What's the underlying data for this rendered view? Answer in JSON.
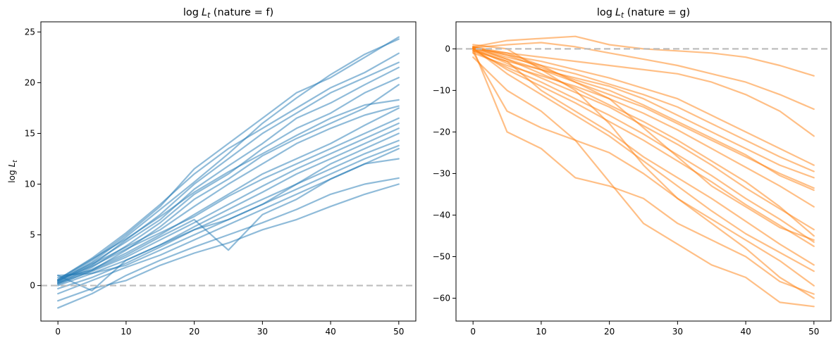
{
  "chart_data": [
    {
      "type": "line",
      "title": "log L_t (nature = f)",
      "title_parts": {
        "prefix": "log",
        "var": "L",
        "sub": "t",
        "suffix": " (nature = f)"
      },
      "ylabel_parts": {
        "prefix": "log",
        "var": "L",
        "sub": "t"
      },
      "xlabel": "",
      "xlim": [
        -2.5,
        52.5
      ],
      "ylim": [
        -3.5,
        26
      ],
      "xticks": [
        0,
        10,
        20,
        30,
        40,
        50
      ],
      "yticks": [
        0,
        5,
        10,
        15,
        20,
        25
      ],
      "color": "#1f77b4",
      "reference_line": {
        "y": 0,
        "color": "#bdbdbd",
        "style": "dashed"
      },
      "grid": false,
      "x": [
        0,
        5,
        10,
        15,
        20,
        25,
        30,
        35,
        40,
        45,
        50
      ],
      "series": [
        {
          "values": [
            0.5,
            2.5,
            5.0,
            7.8,
            11.5,
            14.0,
            16.5,
            19.0,
            20.5,
            22.5,
            24.5
          ]
        },
        {
          "values": [
            0.4,
            2.3,
            4.8,
            7.5,
            10.2,
            13.0,
            16.0,
            18.5,
            20.8,
            22.8,
            24.3
          ]
        },
        {
          "values": [
            0.6,
            2.7,
            5.2,
            8.0,
            11.0,
            13.5,
            15.5,
            17.5,
            19.5,
            21.0,
            22.9
          ]
        },
        {
          "values": [
            0.3,
            2.0,
            4.5,
            7.0,
            10.0,
            12.5,
            15.0,
            17.0,
            19.0,
            20.5,
            22.0
          ]
        },
        {
          "values": [
            0.5,
            2.2,
            4.3,
            6.5,
            9.5,
            11.8,
            14.0,
            16.5,
            18.0,
            19.8,
            21.5
          ]
        },
        {
          "values": [
            0.2,
            1.8,
            3.9,
            6.2,
            9.0,
            11.0,
            13.5,
            15.5,
            17.0,
            19.0,
            20.5
          ]
        },
        {
          "values": [
            0.1,
            1.5,
            3.5,
            5.8,
            8.5,
            10.5,
            12.8,
            14.5,
            16.0,
            17.5,
            19.8
          ]
        },
        {
          "values": [
            0.6,
            2.6,
            4.6,
            6.8,
            9.2,
            11.2,
            13.0,
            14.8,
            16.5,
            17.8,
            18.3
          ]
        },
        {
          "values": [
            0.4,
            2.1,
            3.8,
            5.5,
            7.8,
            10.0,
            12.0,
            14.0,
            15.5,
            16.8,
            17.7
          ]
        },
        {
          "values": [
            0.3,
            1.6,
            3.2,
            5.0,
            7.0,
            9.0,
            11.0,
            12.5,
            14.0,
            15.8,
            17.5
          ]
        },
        {
          "values": [
            0.5,
            1.9,
            3.6,
            5.2,
            6.8,
            8.8,
            10.5,
            12.0,
            13.5,
            15.0,
            16.5
          ]
        },
        {
          "values": [
            0.2,
            1.4,
            2.8,
            4.5,
            6.2,
            8.0,
            9.8,
            11.5,
            13.0,
            14.5,
            16.0
          ]
        },
        {
          "values": [
            0.0,
            1.2,
            2.5,
            4.0,
            5.8,
            7.5,
            9.2,
            11.0,
            12.5,
            14.0,
            15.5
          ]
        },
        {
          "values": [
            -0.3,
            0.8,
            2.2,
            3.8,
            5.5,
            7.0,
            8.5,
            10.0,
            11.5,
            13.0,
            14.3
          ]
        },
        {
          "values": [
            1.0,
            1.2,
            2.0,
            3.5,
            5.0,
            6.5,
            8.0,
            9.5,
            11.0,
            12.5,
            13.8
          ]
        },
        {
          "values": [
            -0.8,
            0.5,
            1.8,
            3.0,
            4.5,
            6.0,
            7.5,
            9.0,
            10.5,
            12.0,
            12.5
          ]
        },
        {
          "values": [
            -2.2,
            -0.8,
            1.0,
            2.5,
            3.8,
            5.0,
            6.2,
            7.5,
            9.0,
            10.0,
            10.6
          ]
        },
        {
          "values": [
            -1.5,
            -0.3,
            0.5,
            2.0,
            3.2,
            4.2,
            5.5,
            6.5,
            7.8,
            9.0,
            10.0
          ]
        },
        {
          "values": [
            0.8,
            1.5,
            3.0,
            4.8,
            6.5,
            3.5,
            7.0,
            8.5,
            10.5,
            12.0,
            13.5
          ]
        },
        {
          "values": [
            1.0,
            -0.5,
            2.5,
            4.0,
            5.5,
            6.5,
            8.0,
            10.0,
            12.0,
            13.5,
            15.0
          ]
        }
      ]
    },
    {
      "type": "line",
      "title": "log L_t (nature = g)",
      "title_parts": {
        "prefix": "log",
        "var": "L",
        "sub": "t",
        "suffix": " (nature = g)"
      },
      "xlabel": "",
      "ylabel": "",
      "xlim": [
        -2.5,
        52.5
      ],
      "ylim": [
        -65.5,
        6.5
      ],
      "xticks": [
        0,
        10,
        20,
        30,
        40,
        50
      ],
      "yticks": [
        0,
        -10,
        -20,
        -30,
        -40,
        -50,
        -60
      ],
      "color": "#ff7f0e",
      "reference_line": {
        "y": 0,
        "color": "#bdbdbd",
        "style": "dashed"
      },
      "grid": false,
      "x": [
        0,
        5,
        10,
        15,
        20,
        25,
        30,
        35,
        40,
        45,
        50
      ],
      "series": [
        {
          "values": [
            0.5,
            2.0,
            2.5,
            3.0,
            1.0,
            0.0,
            -0.5,
            -1.0,
            -2.0,
            -4.0,
            -6.5
          ]
        },
        {
          "values": [
            0.3,
            1.0,
            1.5,
            0.5,
            -1.0,
            -2.5,
            -4.0,
            -6.0,
            -8.0,
            -11.0,
            -14.5
          ]
        },
        {
          "values": [
            0.0,
            -1.0,
            -2.0,
            -3.0,
            -4.0,
            -5.0,
            -6.0,
            -8.0,
            -11.0,
            -15.0,
            -21.0
          ]
        },
        {
          "values": [
            0.5,
            -1.5,
            -3.0,
            -5.0,
            -7.0,
            -9.5,
            -12.0,
            -16.0,
            -20.0,
            -24.0,
            -28.0
          ]
        },
        {
          "values": [
            0.2,
            -2.0,
            -4.0,
            -6.0,
            -8.5,
            -11.0,
            -14.0,
            -18.0,
            -22.0,
            -26.0,
            -29.5
          ]
        },
        {
          "values": [
            -0.5,
            -3.0,
            -5.0,
            -7.0,
            -9.0,
            -12.0,
            -16.0,
            -20.0,
            -24.0,
            -28.0,
            -31.0
          ]
        },
        {
          "values": [
            0.0,
            -2.5,
            -5.0,
            -8.0,
            -11.0,
            -14.0,
            -18.0,
            -22.0,
            -26.0,
            -30.0,
            -33.5
          ]
        },
        {
          "values": [
            0.3,
            -1.5,
            -4.5,
            -7.5,
            -10.0,
            -13.5,
            -17.5,
            -21.5,
            -25.5,
            -30.5,
            -34.0
          ]
        },
        {
          "values": [
            -1.0,
            -4.0,
            -6.5,
            -9.0,
            -12.0,
            -15.5,
            -19.5,
            -24.0,
            -28.5,
            -33.0,
            -38.0
          ]
        },
        {
          "values": [
            0.0,
            -3.5,
            -7.0,
            -10.5,
            -14.0,
            -18.5,
            -23.0,
            -28.0,
            -33.5,
            -38.5,
            -43.5
          ]
        },
        {
          "values": [
            0.5,
            -2.5,
            -6.0,
            -9.5,
            -13.5,
            -17.5,
            -22.0,
            -27.0,
            -32.0,
            -38.0,
            -45.0
          ]
        },
        {
          "values": [
            -0.5,
            -4.5,
            -8.0,
            -12.0,
            -16.0,
            -20.5,
            -25.5,
            -30.5,
            -36.0,
            -41.0,
            -46.5
          ]
        },
        {
          "values": [
            0.0,
            -5.0,
            -9.0,
            -13.0,
            -17.5,
            -22.0,
            -27.0,
            -32.0,
            -37.5,
            -42.5,
            -47.5
          ]
        },
        {
          "values": [
            -0.3,
            -3.0,
            -10.0,
            -15.0,
            -20.0,
            -26.0,
            -31.0,
            -36.0,
            -41.5,
            -47.0,
            -52.0
          ]
        },
        {
          "values": [
            0.2,
            -6.0,
            -11.0,
            -16.0,
            -21.0,
            -27.0,
            -33.0,
            -39.0,
            -44.5,
            -49.0,
            -53.5
          ]
        },
        {
          "values": [
            -0.8,
            -15.0,
            -19.0,
            -22.0,
            -25.0,
            -30.0,
            -36.0,
            -41.0,
            -46.0,
            -51.0,
            -57.0
          ]
        },
        {
          "values": [
            0.0,
            -20.0,
            -24.0,
            -31.0,
            -33.0,
            -36.0,
            -42.0,
            -46.0,
            -50.0,
            -56.0,
            -59.0
          ]
        },
        {
          "values": [
            -2.0,
            -10.0,
            -15.0,
            -22.0,
            -32.0,
            -42.0,
            -47.0,
            -52.0,
            -55.0,
            -61.0,
            -62.0
          ]
        },
        {
          "values": [
            1.0,
            0.0,
            -5.0,
            -10.0,
            -18.0,
            -28.0,
            -36.0,
            -42.0,
            -48.0,
            -55.0,
            -60.0
          ]
        },
        {
          "values": [
            0.5,
            -1.0,
            -4.0,
            -8.0,
            -12.0,
            -19.0,
            -26.0,
            -33.0,
            -38.0,
            -43.0,
            -46.0
          ]
        }
      ]
    }
  ]
}
